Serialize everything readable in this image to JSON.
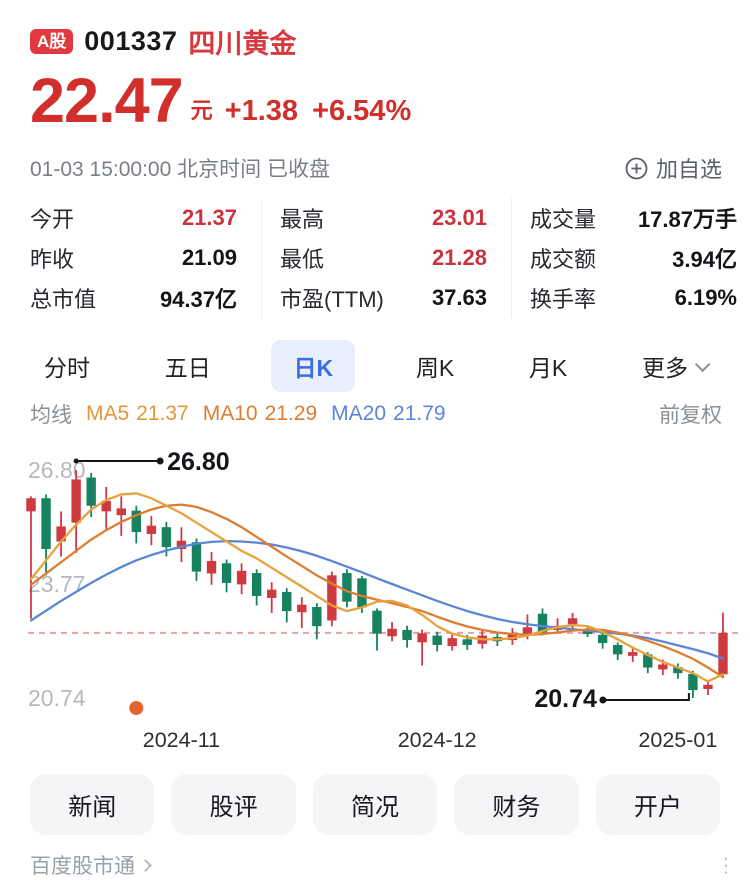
{
  "header": {
    "market_badge": "A股",
    "stock_code": "001337",
    "stock_name": "四川黄金",
    "price": "22.47",
    "currency": "元",
    "change_abs": "+1.38",
    "change_pct": "+6.54%",
    "time_line": "01-03 15:00:00 北京时间 已收盘",
    "add_watchlist_label": "加自选"
  },
  "stats": {
    "columns": [
      {
        "rows": [
          {
            "label": "今开",
            "value": "21.37",
            "red": true
          },
          {
            "label": "昨收",
            "value": "21.09",
            "red": false
          },
          {
            "label": "总市值",
            "value": "94.37亿",
            "red": false
          }
        ]
      },
      {
        "rows": [
          {
            "label": "最高",
            "value": "23.01",
            "red": true
          },
          {
            "label": "最低",
            "value": "21.28",
            "red": true
          },
          {
            "label": "市盈(TTM)",
            "value": "37.63",
            "red": false
          }
        ]
      },
      {
        "rows": [
          {
            "label": "成交量",
            "value": "17.87万手",
            "red": false
          },
          {
            "label": "成交额",
            "value": "3.94亿",
            "red": false
          },
          {
            "label": "换手率",
            "value": "6.19%",
            "red": false
          }
        ]
      }
    ]
  },
  "tabs": {
    "items": [
      {
        "key": "minute",
        "label": "分时",
        "active": false,
        "chevron": false
      },
      {
        "key": "five-day",
        "label": "五日",
        "active": false,
        "chevron": false
      },
      {
        "key": "daily-k",
        "label": "日K",
        "active": true,
        "chevron": false
      },
      {
        "key": "weekly-k",
        "label": "周K",
        "active": false,
        "chevron": false
      },
      {
        "key": "monthly-k",
        "label": "月K",
        "active": false,
        "chevron": false
      },
      {
        "key": "more",
        "label": "更多",
        "active": false,
        "chevron": true
      }
    ]
  },
  "ma": {
    "title": "均线",
    "items": [
      {
        "key": "ma5",
        "label": "MA5",
        "value": "21.37",
        "color": "#e2973b"
      },
      {
        "key": "ma10",
        "label": "MA10",
        "value": "21.29",
        "color": "#dc7d33"
      },
      {
        "key": "ma20",
        "label": "MA20",
        "value": "21.79",
        "color": "#5b86d8"
      }
    ],
    "right_label": "前复权"
  },
  "chart_data": {
    "type": "candlestick",
    "price_min": 20.74,
    "price_max": 26.8,
    "y_axis_labels": [
      "26.80",
      "23.77",
      "20.74"
    ],
    "latest_price_line": 22.47,
    "x_labels": [
      {
        "text": "2024-11",
        "at_index": 10
      },
      {
        "text": "2024-12",
        "at_index": 27
      },
      {
        "text": "2025-01",
        "at_index": 43
      }
    ],
    "annotations": {
      "high": {
        "text": "26.80",
        "price": 26.8,
        "at_index": 3
      },
      "low": {
        "text": "20.74",
        "price": 20.74,
        "at_index": 44
      }
    },
    "event_marker": {
      "at_index": 7,
      "color": "#e3642e"
    },
    "colors": {
      "up": "#ce3a40",
      "down": "#16825f",
      "ma5": "#e6a23c",
      "ma10": "#dc7d33",
      "ma20": "#5b86d8",
      "latest_line": "#e2898d",
      "axis_text": "#b5b9bf",
      "x_label_text": "#2c3036",
      "annotation": "#14161a"
    },
    "candles": [
      {
        "o": 25.7,
        "h": 26.1,
        "l": 22.85,
        "c": 26.05
      },
      {
        "o": 26.05,
        "h": 26.15,
        "l": 24.0,
        "c": 24.7
      },
      {
        "o": 24.9,
        "h": 25.7,
        "l": 24.5,
        "c": 25.3
      },
      {
        "o": 25.4,
        "h": 26.8,
        "l": 24.6,
        "c": 26.55
      },
      {
        "o": 26.6,
        "h": 26.72,
        "l": 25.55,
        "c": 25.85
      },
      {
        "o": 25.7,
        "h": 26.35,
        "l": 25.2,
        "c": 25.98
      },
      {
        "o": 25.6,
        "h": 26.1,
        "l": 25.05,
        "c": 25.78
      },
      {
        "o": 25.72,
        "h": 25.85,
        "l": 24.85,
        "c": 25.15
      },
      {
        "o": 25.1,
        "h": 25.58,
        "l": 24.8,
        "c": 25.32
      },
      {
        "o": 25.28,
        "h": 25.42,
        "l": 24.5,
        "c": 24.75
      },
      {
        "o": 24.7,
        "h": 25.28,
        "l": 24.35,
        "c": 24.92
      },
      {
        "o": 24.88,
        "h": 24.98,
        "l": 23.85,
        "c": 24.1
      },
      {
        "o": 24.05,
        "h": 24.62,
        "l": 23.75,
        "c": 24.38
      },
      {
        "o": 24.32,
        "h": 24.42,
        "l": 23.55,
        "c": 23.8
      },
      {
        "o": 23.76,
        "h": 24.32,
        "l": 23.5,
        "c": 24.12
      },
      {
        "o": 24.06,
        "h": 24.16,
        "l": 23.2,
        "c": 23.45
      },
      {
        "o": 23.4,
        "h": 23.82,
        "l": 23.0,
        "c": 23.62
      },
      {
        "o": 23.56,
        "h": 23.66,
        "l": 22.75,
        "c": 23.05
      },
      {
        "o": 23.02,
        "h": 23.42,
        "l": 22.6,
        "c": 23.22
      },
      {
        "o": 23.16,
        "h": 23.26,
        "l": 22.3,
        "c": 22.65
      },
      {
        "o": 22.8,
        "h": 24.1,
        "l": 22.65,
        "c": 24.0
      },
      {
        "o": 24.06,
        "h": 24.16,
        "l": 23.15,
        "c": 23.3
      },
      {
        "o": 23.92,
        "h": 23.98,
        "l": 23.0,
        "c": 23.15
      },
      {
        "o": 23.06,
        "h": 23.12,
        "l": 22.0,
        "c": 22.45
      },
      {
        "o": 22.38,
        "h": 22.76,
        "l": 22.25,
        "c": 22.58
      },
      {
        "o": 22.55,
        "h": 22.66,
        "l": 22.08,
        "c": 22.28
      },
      {
        "o": 22.22,
        "h": 22.56,
        "l": 21.6,
        "c": 22.46
      },
      {
        "o": 22.4,
        "h": 22.5,
        "l": 21.98,
        "c": 22.15
      },
      {
        "o": 22.12,
        "h": 22.48,
        "l": 22.0,
        "c": 22.33
      },
      {
        "o": 22.3,
        "h": 22.42,
        "l": 22.02,
        "c": 22.15
      },
      {
        "o": 22.18,
        "h": 22.52,
        "l": 22.05,
        "c": 22.4
      },
      {
        "o": 22.36,
        "h": 22.5,
        "l": 22.12,
        "c": 22.25
      },
      {
        "o": 22.28,
        "h": 22.6,
        "l": 22.15,
        "c": 22.46
      },
      {
        "o": 22.42,
        "h": 22.96,
        "l": 22.3,
        "c": 22.62
      },
      {
        "o": 22.98,
        "h": 23.12,
        "l": 22.4,
        "c": 22.48
      },
      {
        "o": 22.55,
        "h": 22.86,
        "l": 22.45,
        "c": 22.66
      },
      {
        "o": 22.7,
        "h": 23.0,
        "l": 22.6,
        "c": 22.86
      },
      {
        "o": 22.56,
        "h": 22.62,
        "l": 22.36,
        "c": 22.44
      },
      {
        "o": 22.42,
        "h": 22.5,
        "l": 22.05,
        "c": 22.2
      },
      {
        "o": 22.15,
        "h": 22.22,
        "l": 21.75,
        "c": 21.9
      },
      {
        "o": 21.86,
        "h": 22.1,
        "l": 21.7,
        "c": 21.96
      },
      {
        "o": 21.9,
        "h": 21.96,
        "l": 21.4,
        "c": 21.55
      },
      {
        "o": 21.5,
        "h": 21.76,
        "l": 21.35,
        "c": 21.63
      },
      {
        "o": 21.56,
        "h": 21.66,
        "l": 21.25,
        "c": 21.4
      },
      {
        "o": 21.38,
        "h": 21.46,
        "l": 20.74,
        "c": 20.95
      },
      {
        "o": 20.98,
        "h": 21.22,
        "l": 20.82,
        "c": 21.09
      },
      {
        "o": 21.37,
        "h": 23.01,
        "l": 21.28,
        "c": 22.47
      }
    ],
    "ma5": [
      23.9,
      24.4,
      24.9,
      25.35,
      25.75,
      26.0,
      26.15,
      26.18,
      26.05,
      25.85,
      25.65,
      25.4,
      25.15,
      24.9,
      24.65,
      24.45,
      24.2,
      23.95,
      23.7,
      23.45,
      23.2,
      23.05,
      23.15,
      23.3,
      23.32,
      23.2,
      22.95,
      22.65,
      22.45,
      22.35,
      22.3,
      22.3,
      22.33,
      22.4,
      22.52,
      22.62,
      22.68,
      22.65,
      22.5,
      22.3,
      22.08,
      21.88,
      21.7,
      21.55,
      21.4,
      21.18,
      21.37
    ],
    "ma10": [
      23.75,
      24.05,
      24.35,
      24.65,
      24.95,
      25.2,
      25.42,
      25.6,
      25.75,
      25.85,
      25.88,
      25.82,
      25.68,
      25.5,
      25.28,
      25.02,
      24.76,
      24.5,
      24.25,
      24.0,
      23.78,
      23.58,
      23.45,
      23.35,
      23.26,
      23.16,
      23.05,
      22.9,
      22.76,
      22.64,
      22.55,
      22.48,
      22.44,
      22.42,
      22.44,
      22.48,
      22.53,
      22.56,
      22.55,
      22.48,
      22.38,
      22.26,
      22.12,
      21.96,
      21.78,
      21.55,
      21.29
    ],
    "ma20": [
      22.8,
      23.06,
      23.32,
      23.56,
      23.8,
      24.02,
      24.22,
      24.4,
      24.54,
      24.66,
      24.76,
      24.84,
      24.89,
      24.91,
      24.9,
      24.87,
      24.82,
      24.74,
      24.64,
      24.52,
      24.38,
      24.23,
      24.08,
      23.92,
      23.77,
      23.62,
      23.47,
      23.32,
      23.18,
      23.05,
      22.94,
      22.84,
      22.76,
      22.7,
      22.65,
      22.61,
      22.57,
      22.53,
      22.49,
      22.45,
      22.4,
      22.33,
      22.24,
      22.14,
      22.04,
      21.93,
      21.79
    ]
  },
  "actions": {
    "buttons": [
      {
        "key": "news",
        "label": "新闻"
      },
      {
        "key": "comments",
        "label": "股评"
      },
      {
        "key": "profile",
        "label": "简况"
      },
      {
        "key": "finance",
        "label": "财务"
      },
      {
        "key": "open-account",
        "label": "开户"
      }
    ]
  },
  "footer": {
    "brand": "百度股市通",
    "more_icon": "⋮"
  }
}
